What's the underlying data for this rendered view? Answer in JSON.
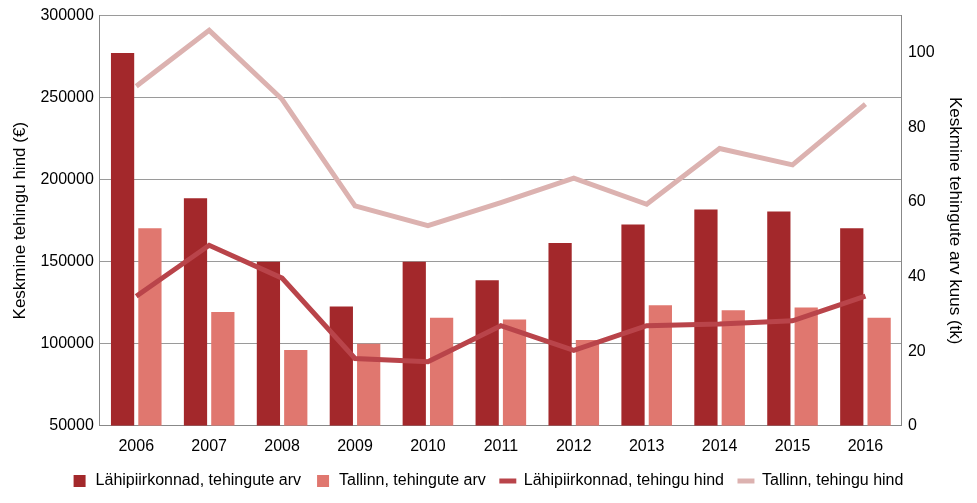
{
  "chart_data": {
    "type": "bar",
    "categories": [
      "2006",
      "2007",
      "2008",
      "2009",
      "2010",
      "2011",
      "2012",
      "2013",
      "2014",
      "2015",
      "2016"
    ],
    "y_label": "Keskmine tehingu hind (€)",
    "y2_label": "Keskmine tehingute arv kuus (tk)",
    "ylim": [
      50000,
      300000
    ],
    "yticks": [
      50000,
      100000,
      150000,
      200000,
      250000,
      300000
    ],
    "y2lim": [
      0,
      110
    ],
    "y2ticks": [
      0,
      20,
      40,
      60,
      80,
      100
    ],
    "grid": true,
    "legend": "bottom",
    "series": [
      {
        "name": "Lähipiirkonnad, tehingute arv",
        "type": "bar",
        "axis": "y2",
        "color": "#a3282b",
        "values": [
          100,
          61,
          44,
          32,
          44,
          39,
          49,
          54,
          58,
          57.5,
          53
        ]
      },
      {
        "name": "Tallinn, tehingute arv",
        "type": "bar",
        "axis": "y2",
        "color": "#e0776f",
        "values": [
          53,
          30.5,
          20.3,
          22,
          29,
          28.5,
          23,
          32.3,
          31,
          31.7,
          29
        ]
      },
      {
        "name": "Lähipiirkonnad, tehingu hind",
        "type": "line",
        "color": "#b9444a",
        "values": [
          129000,
          160000,
          140000,
          91000,
          89000,
          111000,
          96000,
          111000,
          112000,
          114000,
          129000
        ]
      },
      {
        "name": "Tallinn, tehingu hind",
        "type": "line",
        "color": "#dcb2b0",
        "values": [
          257000,
          291000,
          249000,
          184000,
          172000,
          186000,
          201000,
          185000,
          219000,
          209000,
          246000
        ]
      }
    ]
  }
}
